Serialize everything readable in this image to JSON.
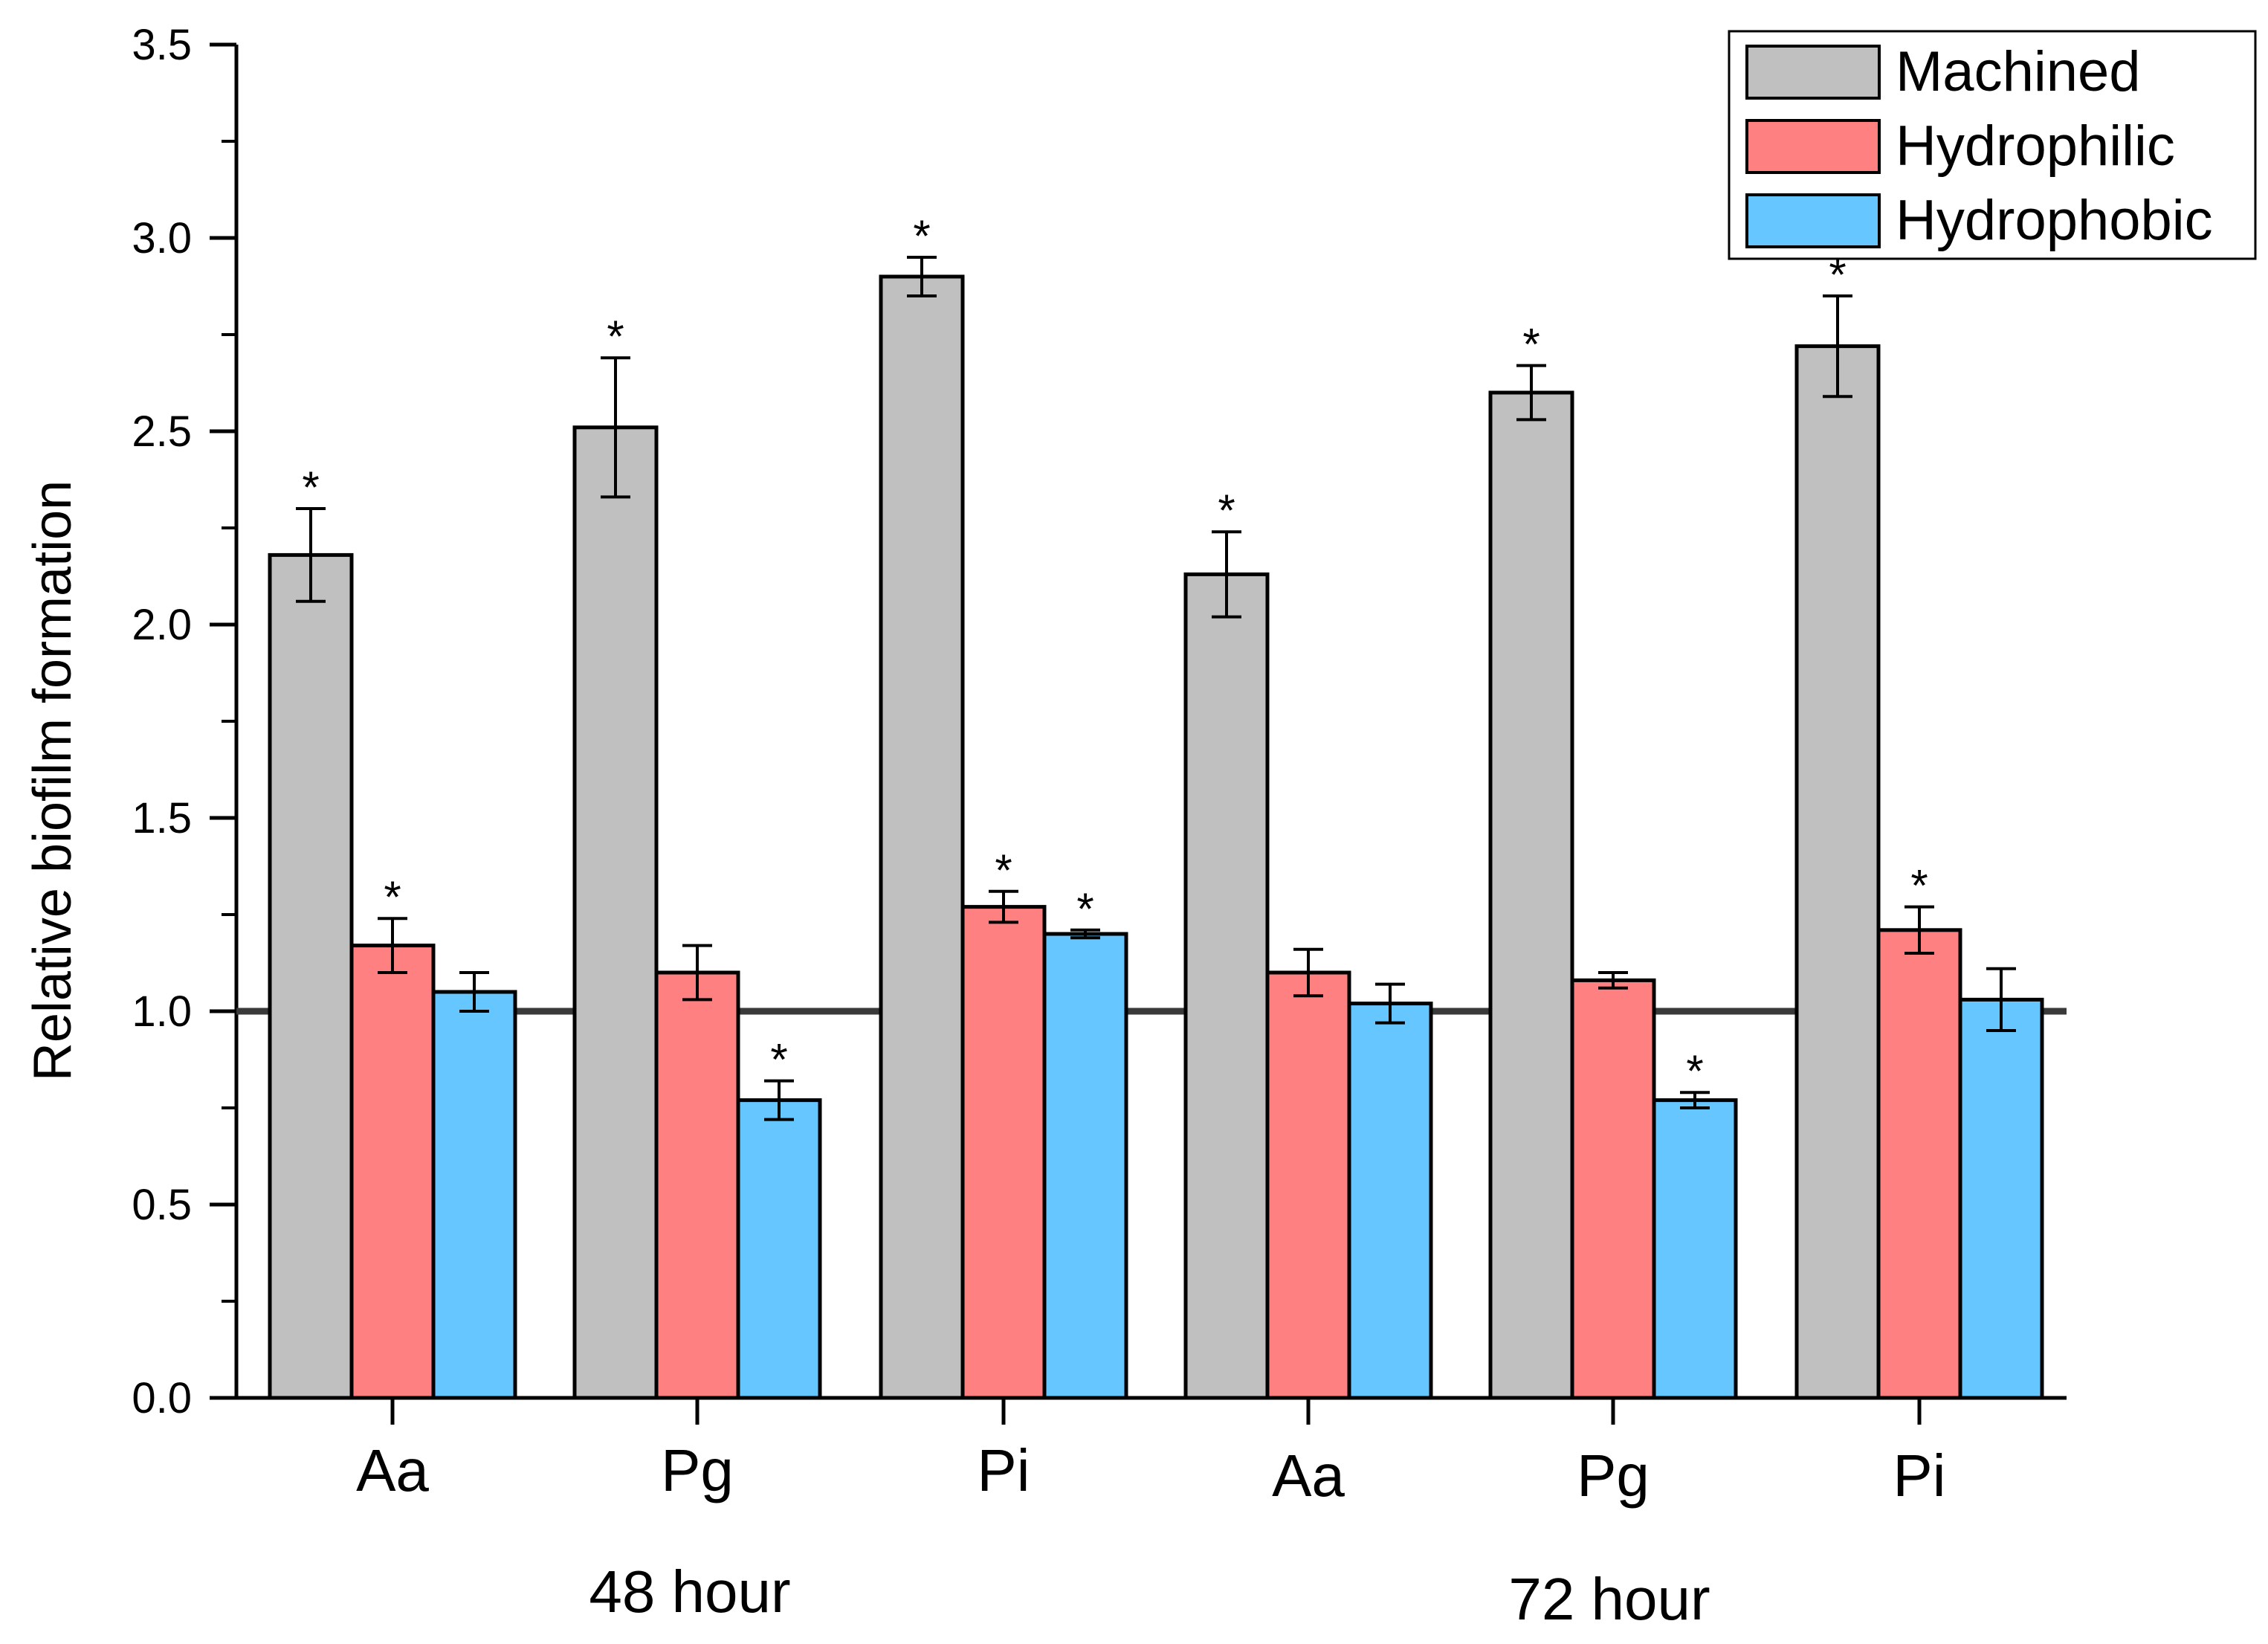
{
  "chart_data": {
    "type": "bar",
    "ylabel": "Relative biofilm formation",
    "xlabel": "",
    "ylim": [
      0,
      3.5
    ],
    "y_ticks": [
      "0.0",
      "0.5",
      "1.0",
      "1.5",
      "2.0",
      "2.5",
      "3.0",
      "3.5"
    ],
    "y_tick_values": [
      0,
      0.5,
      1.0,
      1.5,
      2.0,
      2.5,
      3.0,
      3.5
    ],
    "reference_line": 1.0,
    "categories": [
      "Aa",
      "Pg",
      "Pi",
      "Aa",
      "Pg",
      "Pi"
    ],
    "groups": [
      {
        "label": "48 hour",
        "categories": [
          0,
          1,
          2
        ]
      },
      {
        "label": "72 hour",
        "categories": [
          3,
          4,
          5
        ]
      }
    ],
    "series": [
      {
        "name": "Machined",
        "color": "#c0c0c0",
        "values": [
          2.18,
          2.51,
          2.9,
          2.13,
          2.6,
          2.72
        ],
        "errors": [
          0.12,
          0.18,
          0.05,
          0.11,
          0.07,
          0.13
        ],
        "significant": [
          true,
          true,
          true,
          true,
          true,
          true
        ]
      },
      {
        "name": "Hydrophilic",
        "color": "#ff8080",
        "values": [
          1.17,
          1.1,
          1.27,
          1.1,
          1.08,
          1.21
        ],
        "errors": [
          0.07,
          0.07,
          0.04,
          0.06,
          0.02,
          0.06
        ],
        "significant": [
          true,
          false,
          true,
          false,
          false,
          true
        ]
      },
      {
        "name": "Hydrophobic",
        "color": "#66c6ff",
        "values": [
          1.05,
          0.77,
          1.2,
          1.02,
          0.77,
          1.03
        ],
        "errors": [
          0.05,
          0.05,
          0.01,
          0.05,
          0.02,
          0.08
        ],
        "significant": [
          false,
          true,
          true,
          false,
          true,
          false
        ]
      }
    ],
    "significance_marker": "*",
    "legend_position": "top-right"
  }
}
